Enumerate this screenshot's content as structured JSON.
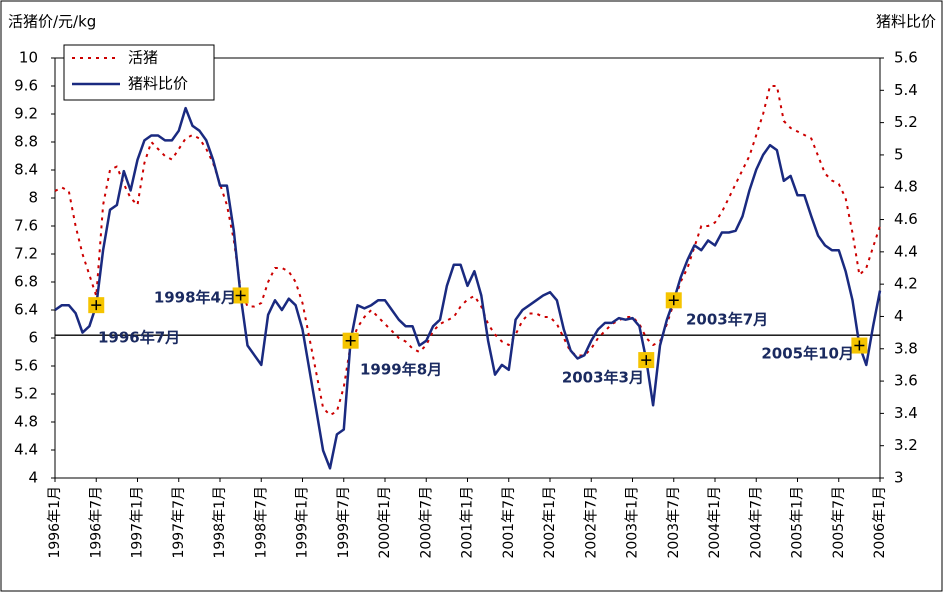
{
  "chart_data": {
    "type": "line",
    "y_axis_title": "活猪价/元/kg",
    "y2_axis_title": "猪料比价",
    "categories": [
      "1996年1月",
      null,
      null,
      null,
      null,
      null,
      "1996年7月",
      null,
      null,
      null,
      null,
      null,
      "1997年1月",
      null,
      null,
      null,
      null,
      null,
      "1997年7月",
      null,
      null,
      null,
      null,
      null,
      "1998年1月",
      null,
      null,
      null,
      null,
      null,
      "1998年7月",
      null,
      null,
      null,
      null,
      null,
      "1999年1月",
      null,
      null,
      null,
      null,
      null,
      "1999年7月",
      null,
      null,
      null,
      null,
      null,
      "2000年1月",
      null,
      null,
      null,
      null,
      null,
      "2000年7月",
      null,
      null,
      null,
      null,
      null,
      "2001年1月",
      null,
      null,
      null,
      null,
      null,
      "2001年7月",
      null,
      null,
      null,
      null,
      null,
      "2002年1月",
      null,
      null,
      null,
      null,
      null,
      "2002年7月",
      null,
      null,
      null,
      null,
      null,
      "2003年1月",
      null,
      null,
      null,
      null,
      null,
      "2003年7月",
      null,
      null,
      null,
      null,
      null,
      "2004年1月",
      null,
      null,
      null,
      null,
      null,
      "2004年7月",
      null,
      null,
      null,
      null,
      null,
      "2005年1月",
      null,
      null,
      null,
      null,
      null,
      "2005年7月",
      null,
      null,
      null,
      null,
      null,
      "2006年1月"
    ],
    "series": [
      {
        "name": "活猪",
        "color": "#cc0000",
        "style": "dotted",
        "values": [
          8.1,
          8.15,
          8.1,
          7.6,
          7.2,
          6.9,
          6.6,
          7.9,
          8.4,
          8.45,
          8.2,
          8.0,
          7.9,
          8.5,
          8.8,
          8.7,
          8.6,
          8.55,
          8.7,
          8.85,
          8.9,
          8.85,
          8.7,
          8.5,
          8.2,
          7.9,
          7.4,
          6.7,
          6.45,
          6.45,
          6.5,
          6.8,
          7.0,
          7.0,
          6.95,
          6.8,
          6.5,
          6.0,
          5.5,
          5.0,
          4.9,
          4.95,
          5.3,
          5.9,
          6.15,
          6.3,
          6.4,
          6.3,
          6.2,
          6.1,
          6.0,
          5.95,
          5.85,
          5.8,
          5.9,
          6.1,
          6.2,
          6.25,
          6.3,
          6.45,
          6.55,
          6.6,
          6.45,
          6.2,
          6.05,
          5.95,
          5.9,
          6.05,
          6.25,
          6.35,
          6.35,
          6.3,
          6.3,
          6.2,
          6.0,
          5.8,
          5.75,
          5.75,
          5.85,
          6.0,
          6.1,
          6.2,
          6.25,
          6.3,
          6.3,
          6.2,
          6.0,
          5.9,
          5.95,
          6.2,
          6.5,
          6.8,
          7.0,
          7.3,
          7.6,
          7.6,
          7.65,
          7.8,
          8.0,
          8.2,
          8.4,
          8.6,
          8.9,
          9.2,
          9.6,
          9.6,
          9.1,
          9.0,
          8.95,
          8.9,
          8.85,
          8.6,
          8.35,
          8.25,
          8.2,
          8.0,
          7.5,
          6.9,
          7.0,
          7.3,
          7.6
        ]
      },
      {
        "name": "猪料比价",
        "color": "#1a2a80",
        "style": "solid",
        "axis": "y2",
        "values": [
          4.04,
          4.07,
          4.07,
          4.02,
          3.9,
          3.94,
          4.07,
          4.41,
          4.66,
          4.69,
          4.9,
          4.78,
          4.97,
          5.09,
          5.12,
          5.12,
          5.09,
          5.09,
          5.15,
          5.29,
          5.18,
          5.15,
          5.09,
          4.97,
          4.81,
          4.81,
          4.53,
          4.13,
          3.82,
          3.76,
          3.7,
          4.01,
          4.1,
          4.04,
          4.11,
          4.07,
          3.92,
          3.67,
          3.42,
          3.17,
          3.06,
          3.27,
          3.3,
          3.85,
          4.07,
          4.05,
          4.07,
          4.1,
          4.1,
          4.04,
          3.98,
          3.94,
          3.94,
          3.82,
          3.85,
          3.94,
          3.98,
          4.19,
          4.32,
          4.32,
          4.19,
          4.28,
          4.13,
          3.85,
          3.64,
          3.7,
          3.67,
          3.98,
          4.04,
          4.07,
          4.1,
          4.13,
          4.15,
          4.1,
          3.92,
          3.79,
          3.74,
          3.76,
          3.85,
          3.92,
          3.96,
          3.96,
          3.99,
          3.98,
          3.99,
          3.94,
          3.73,
          3.45,
          3.82,
          3.98,
          4.1,
          4.24,
          4.35,
          4.44,
          4.41,
          4.47,
          4.44,
          4.52,
          4.52,
          4.53,
          4.62,
          4.78,
          4.91,
          5.0,
          5.06,
          5.03,
          4.84,
          4.87,
          4.75,
          4.75,
          4.62,
          4.5,
          4.44,
          4.41,
          4.41,
          4.28,
          4.1,
          3.82,
          3.7,
          3.94,
          4.16
        ]
      }
    ],
    "ylim": [
      4,
      10
    ],
    "yticks": [
      4,
      4.4,
      4.8,
      5.2,
      5.6,
      6,
      6.4,
      6.8,
      7.2,
      7.6,
      8,
      8.4,
      8.8,
      9.2,
      9.6,
      10
    ],
    "y2lim": [
      3,
      5.6
    ],
    "y2ticks": [
      3,
      3.2,
      3.4,
      3.6,
      3.8,
      4,
      4.2,
      4.4,
      4.6,
      4.8,
      5,
      5.2,
      5.4,
      5.6
    ],
    "reference_y": 6.04,
    "annotations": [
      "1996年7月",
      "1998年4月",
      "1999年8月",
      "2003年3月",
      "2003年7月",
      "2005年10月"
    ],
    "legend": "upper left",
    "grid": false
  }
}
